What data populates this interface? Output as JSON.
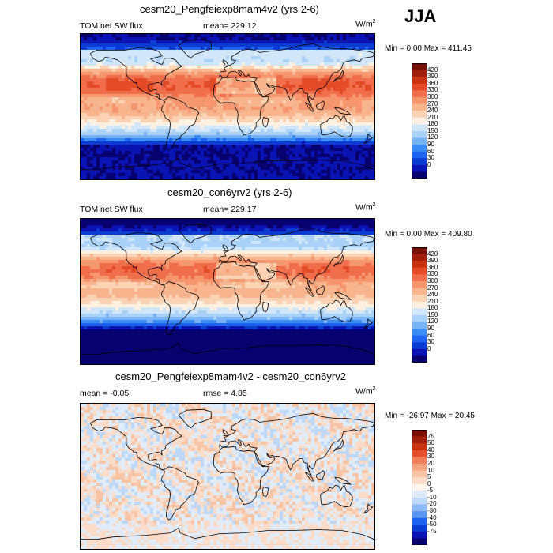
{
  "season": "JJA",
  "colors": {
    "full_scale": [
      "#08006e",
      "#0a14b4",
      "#0a3cd2",
      "#1e64f0",
      "#3c8cf5",
      "#78b4f5",
      "#aad2f8",
      "#d2e6fa",
      "#fff0e1",
      "#fcd2b4",
      "#f8b48c",
      "#f5966e",
      "#f06e4b",
      "#e64b28",
      "#c8320f",
      "#a01e0a",
      "#780f05"
    ],
    "diff_scale": [
      "#08006e",
      "#0a14b4",
      "#0a3cd2",
      "#1e64f0",
      "#5a96f0",
      "#8cbaf5",
      "#bed8fa",
      "#e0ecfa",
      "#fff5ec",
      "#fcdcc8",
      "#f8c4a6",
      "#f5a482",
      "#f07e5a",
      "#e4502d",
      "#c8320f",
      "#a01e0a",
      "#780f05"
    ]
  },
  "panels": [
    {
      "case": "cesm20_Pengfeiexp8mam4v2 (yrs 2-6)",
      "variable": "TOM net SW flux",
      "mean_text": "mean= 229.12",
      "units": "W/m",
      "units_exp": "2",
      "minmax": "Min =   0.00 Max = 411.45"
    },
    {
      "case": "cesm20_con6yrv2 (yrs 2-6)",
      "variable": "TOM net SW flux",
      "mean_text": "mean= 229.17",
      "units": "W/m",
      "units_exp": "2",
      "minmax": "Min =   0.00 Max = 409.80"
    },
    {
      "case": "cesm20_Pengfeiexp8mam4v2 - cesm20_con6yrv2",
      "mean_text": "mean =  -0.05",
      "rmse_text": "rmse =   4.85",
      "units": "W/m",
      "units_exp": "2",
      "minmax": "Min = -26.97 Max =  20.45"
    }
  ],
  "chart_data": [
    {
      "type": "heatmap",
      "title": "cesm20_Pengfeiexp8mam4v2 (yrs 2-6)",
      "variable": "TOM net SW flux",
      "units": "W/m^2",
      "season": "JJA",
      "mean": 229.12,
      "min": 0.0,
      "max": 411.45,
      "colorbar_levels": [
        "420",
        "390",
        "360",
        "330",
        "300",
        "270",
        "240",
        "210",
        "180",
        "150",
        "120",
        "90",
        "60",
        "30",
        "0"
      ]
    },
    {
      "type": "heatmap",
      "title": "cesm20_con6yrv2 (yrs 2-6)",
      "variable": "TOM net SW flux",
      "units": "W/m^2",
      "season": "JJA",
      "mean": 229.17,
      "min": 0.0,
      "max": 409.8,
      "colorbar_levels": [
        "420",
        "390",
        "360",
        "330",
        "300",
        "270",
        "240",
        "210",
        "180",
        "150",
        "120",
        "90",
        "60",
        "30",
        "0"
      ]
    },
    {
      "type": "heatmap",
      "title": "cesm20_Pengfeiexp8mam4v2 - cesm20_con6yrv2",
      "units": "W/m^2",
      "season": "JJA",
      "mean": -0.05,
      "rmse": 4.85,
      "min": -26.97,
      "max": 20.45,
      "colorbar_levels": [
        "75",
        "50",
        "40",
        "30",
        "20",
        "10",
        "5",
        "0",
        "-5",
        "-10",
        "-20",
        "-30",
        "-40",
        "-50",
        "-75"
      ]
    }
  ]
}
